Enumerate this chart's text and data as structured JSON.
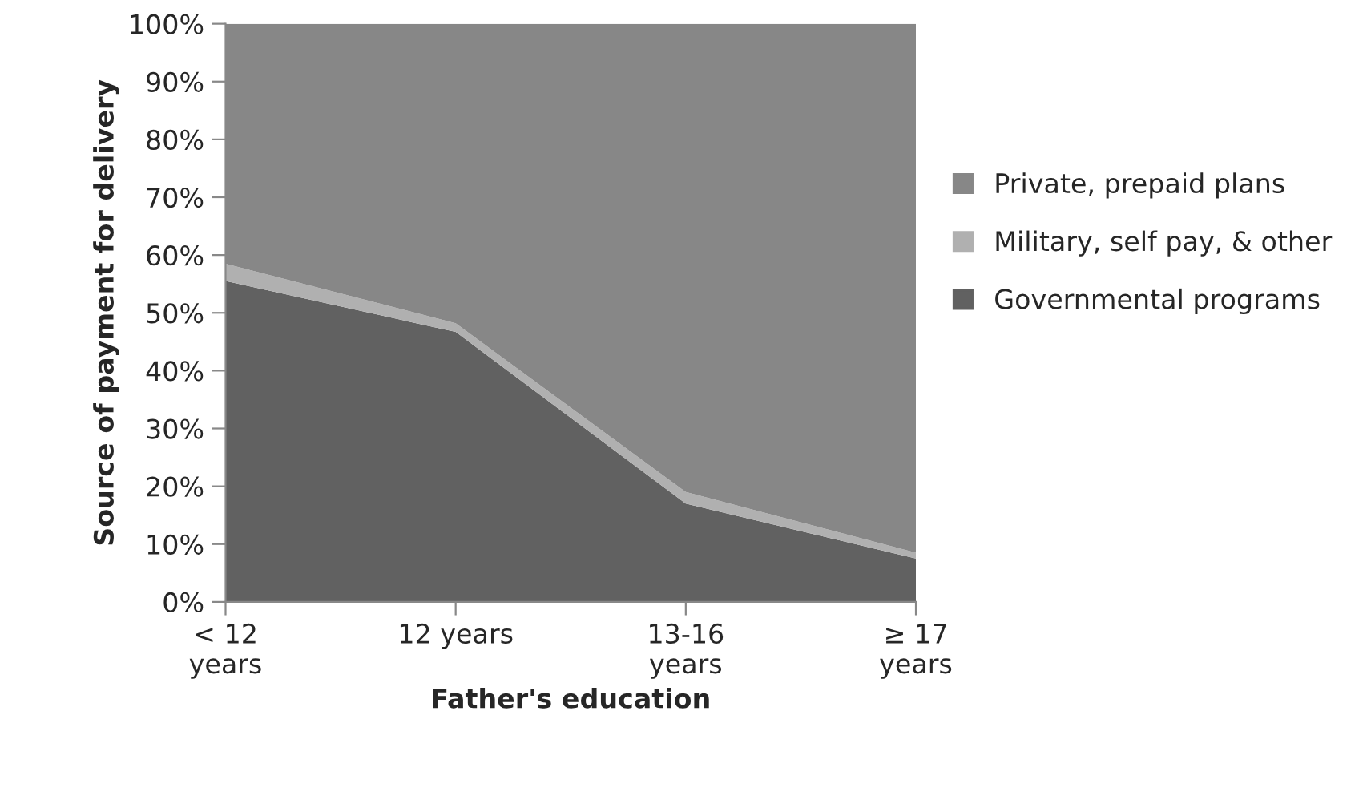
{
  "chart_data": {
    "type": "area",
    "stacked": true,
    "xlabel": "Father's education",
    "ylabel": "Source of payment for delivery",
    "categories": [
      "< 12\nyears",
      "12 years",
      "13-16\nyears",
      "≥ 17\nyears"
    ],
    "series": [
      {
        "name": "Governmental programs",
        "color": "#616161",
        "values": [
          55.5,
          46.7,
          17,
          7.5
        ]
      },
      {
        "name": "Military, self pay, & other",
        "color": "#b0b0b0",
        "values": [
          3,
          1.5,
          2,
          1
        ]
      },
      {
        "name": "Private, prepaid plans",
        "color": "#878787",
        "values": [
          41.5,
          51.8,
          81,
          91.5
        ]
      }
    ],
    "ylim": [
      0,
      100
    ],
    "yticks": [
      {
        "value": 0,
        "label": "0%"
      },
      {
        "value": 10,
        "label": "10%"
      },
      {
        "value": 20,
        "label": "20%"
      },
      {
        "value": 30,
        "label": "30%"
      },
      {
        "value": 40,
        "label": "40%"
      },
      {
        "value": 50,
        "label": "50%"
      },
      {
        "value": 60,
        "label": "60%"
      },
      {
        "value": 70,
        "label": "70%"
      },
      {
        "value": 80,
        "label": "80%"
      },
      {
        "value": 90,
        "label": "90%"
      },
      {
        "value": 100,
        "label": "100%"
      }
    ],
    "legend": "right"
  }
}
